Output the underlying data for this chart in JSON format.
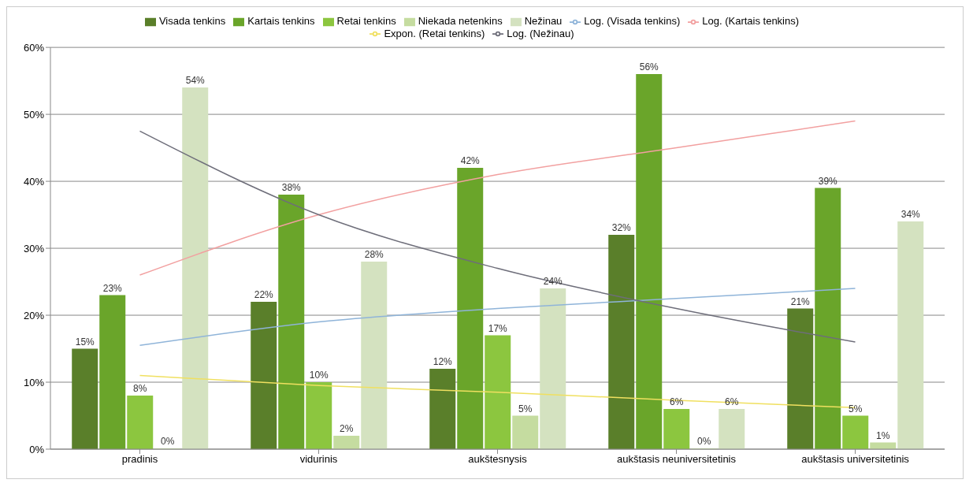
{
  "chart_data": {
    "type": "bar",
    "categories": [
      "pradinis",
      "vidurinis",
      "aukštesnysis",
      "aukštasis neuniversitetinis",
      "aukštasis universitetinis"
    ],
    "series": [
      {
        "name": "Visada tenkins",
        "color": "#5a7f2a",
        "values": [
          15,
          22,
          12,
          32,
          21
        ],
        "value_labels": [
          "15%",
          "22%",
          "12%",
          "32%",
          "21%"
        ]
      },
      {
        "name": "Kartais tenkins",
        "color": "#6aa52a",
        "values": [
          23,
          38,
          42,
          56,
          39
        ],
        "value_labels": [
          "23%",
          "38%",
          "42%",
          "56%",
          "39%"
        ]
      },
      {
        "name": "Retai tenkins",
        "color": "#8cc63f",
        "values": [
          8,
          10,
          17,
          6,
          5
        ],
        "value_labels": [
          "8%",
          "10%",
          "17%",
          "6%",
          "5%"
        ]
      },
      {
        "name": "Niekada netenkins",
        "color": "#c5dca0",
        "values": [
          0,
          2,
          5,
          0,
          1
        ],
        "value_labels": [
          "0%",
          "2%",
          "5%",
          "0%",
          "1%"
        ]
      },
      {
        "name": "Nežinau",
        "color": "#d4e2c0",
        "values": [
          54,
          28,
          24,
          6,
          34
        ],
        "value_labels": [
          "54%",
          "28%",
          "24%",
          "6%",
          "34%"
        ]
      },
      {
        "name": "Log. (Visada tenkins)",
        "type": "line",
        "color": "#8fb4d9",
        "values": [
          15.5,
          19,
          21,
          22.5,
          24
        ]
      },
      {
        "name": "Log. (Kartais tenkins)",
        "type": "line",
        "color": "#f2a0a0",
        "values": [
          26,
          35,
          41,
          45,
          49
        ]
      },
      {
        "name": "Expon. (Retai tenkins)",
        "type": "line",
        "color": "#f0e060",
        "values": [
          11,
          9.5,
          8.5,
          7.3,
          6.2
        ]
      },
      {
        "name": "Log. (Nežinau)",
        "type": "line",
        "color": "#6e6e7a",
        "values": [
          47.5,
          35,
          27,
          21,
          16
        ]
      }
    ],
    "ylim": [
      0,
      60
    ],
    "yticks": [
      {
        "value": 0,
        "label": "0%"
      },
      {
        "value": 10,
        "label": "10%"
      },
      {
        "value": 20,
        "label": "20%"
      },
      {
        "value": 30,
        "label": "30%"
      },
      {
        "value": 40,
        "label": "40%"
      },
      {
        "value": 50,
        "label": "50%"
      },
      {
        "value": 60,
        "label": "60%"
      }
    ],
    "grid": "y",
    "legend": "top",
    "marker": "none",
    "line_style": "solid"
  }
}
